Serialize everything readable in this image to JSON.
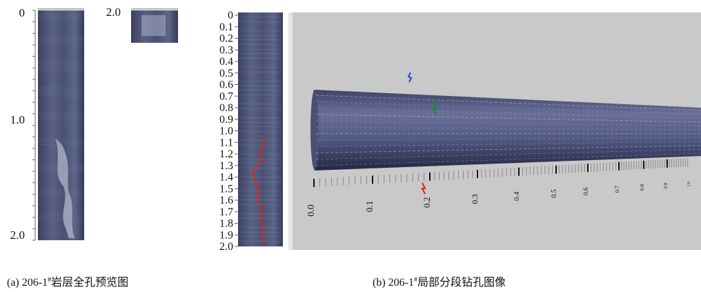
{
  "panel_a": {
    "caption": {
      "prefix": "(a) 206-1",
      "sup": "#",
      "suffix": "岩层全孔预览图"
    },
    "depth_labels": [
      "0",
      "1.0",
      "2.0"
    ],
    "detail_label": "2.0"
  },
  "panel_b": {
    "caption": {
      "prefix": "(b) 206-1",
      "sup": "#",
      "suffix": "局部分段钻孔图像"
    },
    "depth_labels": [
      "0",
      "0.1",
      "0.2",
      "0.3",
      "0.4",
      "0.5",
      "0.6",
      "0.7",
      "0.8",
      "0.9",
      "1.0",
      "1.1",
      "1.2",
      "1.3",
      "1.4",
      "1.5",
      "1.6",
      "1.7",
      "1.8",
      "1.9",
      "2.0"
    ],
    "scale_labels": [
      "0.0",
      "0.1",
      "0.2",
      "0.3",
      "0.4",
      "0.5",
      "0.6",
      "0.7",
      "0.8",
      "0.9",
      "1.0"
    ]
  }
}
